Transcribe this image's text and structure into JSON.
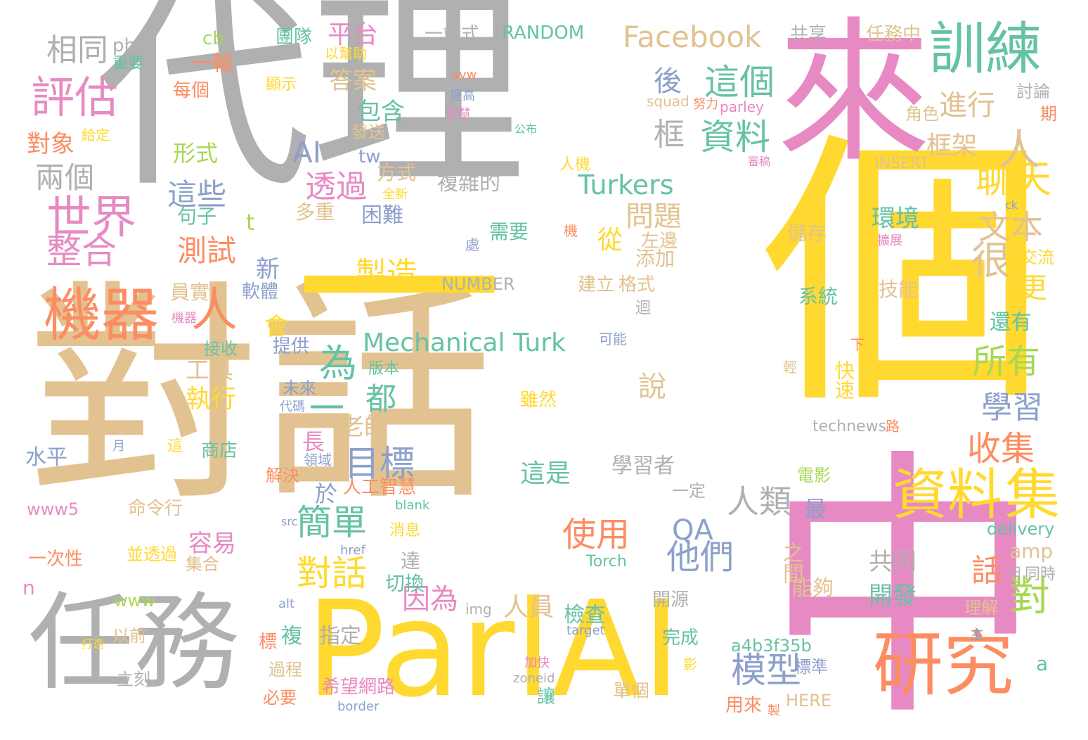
{
  "colors": {
    "gray": "#b0b0b0",
    "tan": "#e2c290",
    "pink": "#e78ac3",
    "yellow": "#ffd92f",
    "orange": "#fc8d62",
    "green": "#a6d854",
    "teal": "#66c2a5",
    "blue": "#8da0cb"
  },
  "words": [
    {
      "id": "w001",
      "text": "代理",
      "c": "gray"
    },
    {
      "id": "w002",
      "text": "對話",
      "c": "tan"
    },
    {
      "id": "w003",
      "text": "個",
      "c": "yellow"
    },
    {
      "id": "w004",
      "text": "一",
      "c": "yellow"
    },
    {
      "id": "w005",
      "text": "中",
      "c": "pink"
    },
    {
      "id": "w006",
      "text": "來",
      "c": "pink"
    },
    {
      "id": "w007",
      "text": "ParlAI",
      "c": "yellow"
    },
    {
      "id": "w008",
      "text": "任務",
      "c": "gray"
    },
    {
      "id": "w009",
      "text": "研究",
      "c": "orange"
    },
    {
      "id": "w010",
      "text": "機器",
      "c": "orange"
    },
    {
      "id": "w011",
      "text": "人",
      "c": "orange"
    },
    {
      "id": "w012",
      "text": "訓練",
      "c": "teal"
    },
    {
      "id": "w013",
      "text": "資料",
      "c": "yellow"
    },
    {
      "id": "w014",
      "text": "集",
      "c": "yellow"
    },
    {
      "id": "w015",
      "text": "Facebook",
      "c": "tan"
    },
    {
      "id": "w016",
      "text": "世界",
      "c": "pink"
    },
    {
      "id": "w017",
      "text": "評估",
      "c": "pink"
    },
    {
      "id": "w018",
      "text": "相同",
      "c": "gray"
    },
    {
      "id": "w019",
      "text": "php",
      "c": "gray"
    },
    {
      "id": "w020",
      "text": "一輪",
      "c": "orange"
    },
    {
      "id": "w021",
      "text": "平台",
      "c": "pink"
    },
    {
      "id": "w022",
      "text": "團隊",
      "c": "teal"
    },
    {
      "id": "w023",
      "text": "一站式",
      "c": "gray"
    },
    {
      "id": "w024",
      "text": "RANDOM",
      "c": "teal"
    },
    {
      "id": "w025",
      "text": "共享",
      "c": "gray"
    },
    {
      "id": "w026",
      "text": "任務中",
      "c": "tan"
    },
    {
      "id": "w027",
      "text": "這個",
      "c": "teal"
    },
    {
      "id": "w028",
      "text": "後",
      "c": "blue"
    },
    {
      "id": "w029",
      "text": "資料",
      "c": "teal"
    },
    {
      "id": "w030",
      "text": "框",
      "c": "gray"
    },
    {
      "id": "w031",
      "text": "Turkers",
      "c": "teal"
    },
    {
      "id": "w032",
      "text": "AI",
      "c": "blue"
    },
    {
      "id": "w033",
      "text": "透過",
      "c": "pink"
    },
    {
      "id": "w034",
      "text": "這些",
      "c": "blue"
    },
    {
      "id": "w035",
      "text": "兩個",
      "c": "gray"
    },
    {
      "id": "w036",
      "text": "對象",
      "c": "orange"
    },
    {
      "id": "w037",
      "text": "聊天",
      "c": "yellow"
    },
    {
      "id": "w038",
      "text": "進行",
      "c": "tan"
    },
    {
      "id": "w039",
      "text": "框架",
      "c": "tan"
    },
    {
      "id": "w040",
      "text": "人",
      "c": "tan"
    },
    {
      "id": "w041",
      "text": "文本",
      "c": "tan"
    },
    {
      "id": "w042",
      "text": "很",
      "c": "tan"
    },
    {
      "id": "w043",
      "text": "更",
      "c": "yellow"
    },
    {
      "id": "w044",
      "text": "所有",
      "c": "green"
    },
    {
      "id": "w045",
      "text": "學習",
      "c": "blue"
    },
    {
      "id": "w046",
      "text": "收集",
      "c": "orange"
    },
    {
      "id": "w047",
      "text": "Mechanical Turk",
      "c": "teal"
    },
    {
      "id": "w048",
      "text": "為",
      "c": "teal"
    },
    {
      "id": "w049",
      "text": "一",
      "c": "teal"
    },
    {
      "id": "w050",
      "text": "都",
      "c": "teal"
    },
    {
      "id": "w051",
      "text": "目標",
      "c": "blue"
    },
    {
      "id": "w052",
      "text": "簡單",
      "c": "teal"
    },
    {
      "id": "w053",
      "text": "對話",
      "c": "yellow"
    },
    {
      "id": "w054",
      "text": "使用",
      "c": "orange"
    },
    {
      "id": "w055",
      "text": "人類",
      "c": "gray"
    },
    {
      "id": "w056",
      "text": "他們",
      "c": "blue"
    },
    {
      "id": "w057",
      "text": "QA",
      "c": "blue"
    },
    {
      "id": "w058",
      "text": "模型",
      "c": "blue"
    },
    {
      "id": "w059",
      "text": "對",
      "c": "green"
    },
    {
      "id": "w060",
      "text": "話",
      "c": "orange"
    },
    {
      "id": "w061",
      "text": "製造",
      "c": "yellow"
    },
    {
      "id": "w062",
      "text": "問題",
      "c": "tan"
    },
    {
      "id": "w063",
      "text": "從",
      "c": "yellow"
    },
    {
      "id": "w064",
      "text": "環境",
      "c": "teal"
    },
    {
      "id": "w065",
      "text": "儲存",
      "c": "tan"
    },
    {
      "id": "w066",
      "text": "交流",
      "c": "yellow"
    },
    {
      "id": "w067",
      "text": "系統",
      "c": "teal"
    },
    {
      "id": "w068",
      "text": "技能",
      "c": "tan"
    },
    {
      "id": "w069",
      "text": "還有",
      "c": "teal"
    },
    {
      "id": "w070",
      "text": "快速",
      "c": "yellow"
    },
    {
      "id": "w071",
      "text": "下",
      "c": "orange"
    },
    {
      "id": "w072",
      "text": "technews",
      "c": "gray"
    },
    {
      "id": "w073",
      "text": "路",
      "c": "orange"
    },
    {
      "id": "w074",
      "text": "共同",
      "c": "gray"
    },
    {
      "id": "w075",
      "text": "開發",
      "c": "teal"
    },
    {
      "id": "w076",
      "text": "之間",
      "c": "tan"
    },
    {
      "id": "w077",
      "text": "能夠",
      "c": "tan"
    },
    {
      "id": "w078",
      "text": "a4b3f35b",
      "c": "teal"
    },
    {
      "id": "w079",
      "text": "a",
      "c": "teal"
    },
    {
      "id": "w080",
      "text": "delivery",
      "c": "teal"
    },
    {
      "id": "w081",
      "text": "amp",
      "c": "tan"
    },
    {
      "id": "w082",
      "text": "理解",
      "c": "tan"
    },
    {
      "id": "w083",
      "text": "同時",
      "c": "gray"
    },
    {
      "id": "w084",
      "text": "HERE",
      "c": "tan"
    },
    {
      "id": "w085",
      "text": "標準",
      "c": "blue"
    },
    {
      "id": "w086",
      "text": "電影",
      "c": "green"
    },
    {
      "id": "w087",
      "text": "最",
      "c": "blue"
    },
    {
      "id": "w088",
      "text": "Torch",
      "c": "teal"
    },
    {
      "id": "w089",
      "text": "學習者",
      "c": "gray"
    },
    {
      "id": "w090",
      "text": "說",
      "c": "tan"
    },
    {
      "id": "w091",
      "text": "長",
      "c": "pink"
    },
    {
      "id": "w092",
      "text": "於",
      "c": "blue"
    },
    {
      "id": "w093",
      "text": "人工智慧",
      "c": "orange"
    },
    {
      "id": "w094",
      "text": "老師",
      "c": "tan"
    },
    {
      "id": "w095",
      "text": "因為",
      "c": "pink"
    },
    {
      "id": "w096",
      "text": "人員",
      "c": "tan"
    },
    {
      "id": "w097",
      "text": "檢查",
      "c": "teal"
    },
    {
      "id": "w098",
      "text": "開源",
      "c": "gray"
    },
    {
      "id": "w099",
      "text": "完成",
      "c": "teal"
    },
    {
      "id": "w100",
      "text": "一定",
      "c": "gray"
    },
    {
      "id": "w101",
      "text": "這是",
      "c": "teal"
    },
    {
      "id": "w102",
      "text": "達",
      "c": "gray"
    },
    {
      "id": "w103",
      "text": "切換",
      "c": "teal"
    },
    {
      "id": "w104",
      "text": "指定",
      "c": "gray"
    },
    {
      "id": "w105",
      "text": "複",
      "c": "teal"
    },
    {
      "id": "w106",
      "text": "希望網路",
      "c": "pink"
    },
    {
      "id": "w107",
      "text": "必要",
      "c": "orange"
    },
    {
      "id": "w108",
      "text": "過程",
      "c": "tan"
    },
    {
      "id": "w109",
      "text": "讓",
      "c": "teal"
    },
    {
      "id": "w110",
      "text": "單個",
      "c": "tan"
    },
    {
      "id": "w111",
      "text": "用來",
      "c": "orange"
    },
    {
      "id": "w112",
      "text": "border",
      "c": "blue"
    },
    {
      "id": "w113",
      "text": "測試",
      "c": "orange"
    },
    {
      "id": "w114",
      "text": "整合",
      "c": "pink"
    },
    {
      "id": "w115",
      "text": "新",
      "c": "blue"
    },
    {
      "id": "w116",
      "text": "軟體",
      "c": "blue"
    },
    {
      "id": "w117",
      "text": "員實",
      "c": "tan"
    },
    {
      "id": "w118",
      "text": "會",
      "c": "yellow"
    },
    {
      "id": "w119",
      "text": "提供",
      "c": "blue"
    },
    {
      "id": "w120",
      "text": "接收",
      "c": "teal"
    },
    {
      "id": "w121",
      "text": "工具",
      "c": "tan"
    },
    {
      "id": "w122",
      "text": "執行",
      "c": "yellow"
    },
    {
      "id": "w123",
      "text": "版本",
      "c": "teal"
    },
    {
      "id": "w124",
      "text": "未來",
      "c": "blue"
    },
    {
      "id": "w125",
      "text": "代碼",
      "c": "blue"
    },
    {
      "id": "w126",
      "text": "商店",
      "c": "teal"
    },
    {
      "id": "w127",
      "text": "水平",
      "c": "blue"
    },
    {
      "id": "w128",
      "text": "解決",
      "c": "orange"
    },
    {
      "id": "w129",
      "text": "命令行",
      "c": "tan"
    },
    {
      "id": "w130",
      "text": "www5",
      "c": "pink"
    },
    {
      "id": "w131",
      "text": "容易",
      "c": "pink"
    },
    {
      "id": "w132",
      "text": "一次性",
      "c": "orange"
    },
    {
      "id": "w133",
      "text": "並透過",
      "c": "yellow"
    },
    {
      "id": "w134",
      "text": "集合",
      "c": "tan"
    },
    {
      "id": "w135",
      "text": "n",
      "c": "pink"
    },
    {
      "id": "w136",
      "text": "www",
      "c": "green"
    },
    {
      "id": "w137",
      "text": "以前",
      "c": "tan"
    },
    {
      "id": "w138",
      "text": "立刻",
      "c": "gray"
    },
    {
      "id": "w139",
      "text": "形式",
      "c": "green"
    },
    {
      "id": "w140",
      "text": "句子",
      "c": "teal"
    },
    {
      "id": "w141",
      "text": "方式",
      "c": "tan"
    },
    {
      "id": "w142",
      "text": "多重",
      "c": "tan"
    },
    {
      "id": "w143",
      "text": "困難",
      "c": "blue"
    },
    {
      "id": "w144",
      "text": "需要",
      "c": "teal"
    },
    {
      "id": "w145",
      "text": "複雜的",
      "c": "gray"
    },
    {
      "id": "w146",
      "text": "答案",
      "c": "tan"
    },
    {
      "id": "w147",
      "text": "包含",
      "c": "teal"
    },
    {
      "id": "w148",
      "text": "發送",
      "c": "tan"
    },
    {
      "id": "w149",
      "text": "tw",
      "c": "blue"
    },
    {
      "id": "w150",
      "text": "t",
      "c": "green"
    },
    {
      "id": "w151",
      "text": "左邊",
      "c": "tan"
    },
    {
      "id": "w152",
      "text": "添加",
      "c": "tan"
    },
    {
      "id": "w153",
      "text": "NUMBER",
      "c": "gray"
    },
    {
      "id": "w154",
      "text": "建立",
      "c": "tan"
    },
    {
      "id": "w155",
      "text": "格式",
      "c": "tan"
    },
    {
      "id": "w156",
      "text": "可能",
      "c": "blue"
    },
    {
      "id": "w157",
      "text": "雖然",
      "c": "yellow"
    },
    {
      "id": "w158",
      "text": "每個",
      "c": "orange"
    },
    {
      "id": "w159",
      "text": "重要",
      "c": "teal"
    },
    {
      "id": "w160",
      "text": "以幫助",
      "c": "yellow"
    },
    {
      "id": "w161",
      "text": "顯示",
      "c": "yellow"
    },
    {
      "id": "w162",
      "text": "cb",
      "c": "green"
    },
    {
      "id": "w163",
      "text": "squad",
      "c": "tan"
    },
    {
      "id": "w164",
      "text": "parley",
      "c": "pink"
    },
    {
      "id": "w165",
      "text": "討論",
      "c": "gray"
    },
    {
      "id": "w166",
      "text": "角色",
      "c": "tan"
    },
    {
      "id": "w167",
      "text": "期",
      "c": "orange"
    },
    {
      "id": "w168",
      "text": "INSERT",
      "c": "tan"
    },
    {
      "id": "w169",
      "text": "人機",
      "c": "yellow"
    },
    {
      "id": "w170",
      "text": "avw",
      "c": "orange"
    },
    {
      "id": "w171",
      "text": "全新",
      "c": "yellow"
    },
    {
      "id": "w172",
      "text": "公布",
      "c": "teal"
    },
    {
      "id": "w173",
      "text": "智慧",
      "c": "pink"
    },
    {
      "id": "w174",
      "text": "提高",
      "c": "blue"
    },
    {
      "id": "w175",
      "text": "給定",
      "c": "yellow"
    },
    {
      "id": "w176",
      "text": "處",
      "c": "blue"
    },
    {
      "id": "w177",
      "text": "機",
      "c": "orange"
    },
    {
      "id": "w178",
      "text": "迴",
      "c": "gray"
    },
    {
      "id": "w179",
      "text": "ck",
      "c": "blue"
    },
    {
      "id": "w180",
      "text": "月",
      "c": "blue"
    },
    {
      "id": "w181",
      "text": "這",
      "c": "yellow"
    },
    {
      "id": "w182",
      "text": "領域",
      "c": "blue"
    },
    {
      "id": "w183",
      "text": "blank",
      "c": "teal"
    },
    {
      "id": "w184",
      "text": "src",
      "c": "blue"
    },
    {
      "id": "w185",
      "text": "消息",
      "c": "yellow"
    },
    {
      "id": "w186",
      "text": "href",
      "c": "blue"
    },
    {
      "id": "w187",
      "text": "alt",
      "c": "blue"
    },
    {
      "id": "w188",
      "text": "img",
      "c": "gray"
    },
    {
      "id": "w189",
      "text": "target",
      "c": "blue"
    },
    {
      "id": "w190",
      "text": "zoneid",
      "c": "gray"
    },
    {
      "id": "w191",
      "text": "打造",
      "c": "yellow"
    },
    {
      "id": "w192",
      "text": "標",
      "c": "orange"
    },
    {
      "id": "w193",
      "text": "加快",
      "c": "pink"
    },
    {
      "id": "w194",
      "text": "製",
      "c": "orange"
    },
    {
      "id": "w195",
      "text": "主",
      "c": "blue"
    },
    {
      "id": "w196",
      "text": "日",
      "c": "gray"
    },
    {
      "id": "w197",
      "text": "輕",
      "c": "tan"
    },
    {
      "id": "w198",
      "text": "影",
      "c": "yellow"
    },
    {
      "id": "w199",
      "text": "機器",
      "c": "pink"
    },
    {
      "id": "w200",
      "text": "擴展",
      "c": "pink"
    },
    {
      "id": "w201",
      "text": "努力",
      "c": "orange"
    },
    {
      "id": "w202",
      "text": "審稿",
      "c": "pink"
    }
  ]
}
